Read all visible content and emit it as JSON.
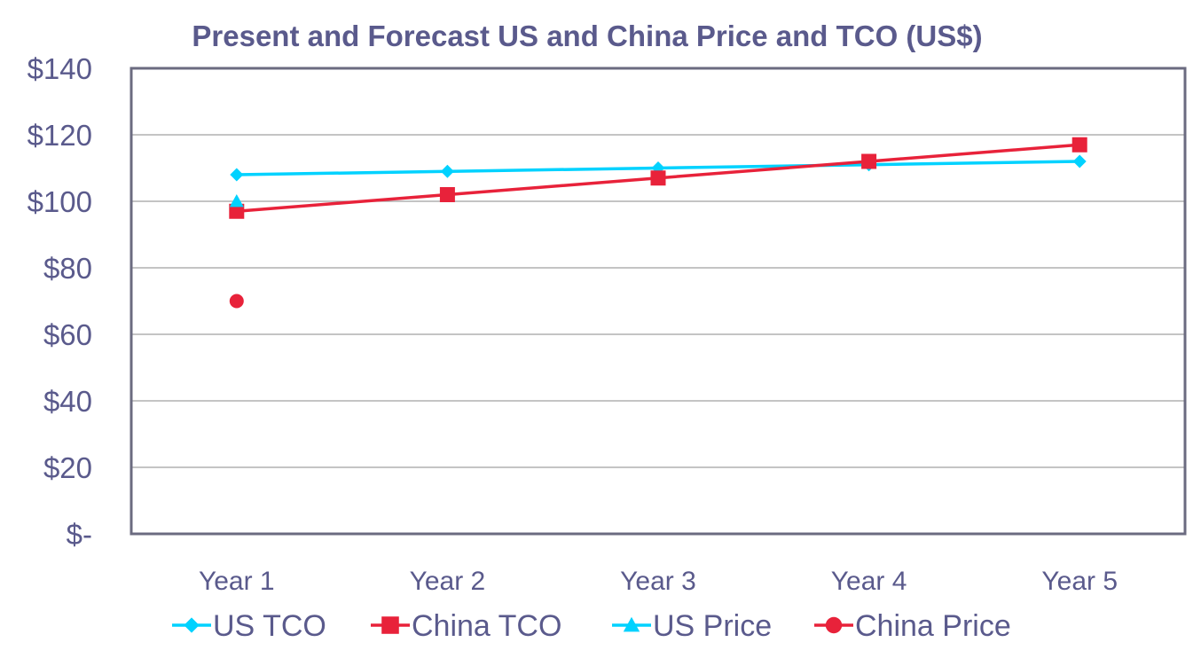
{
  "chart_data": {
    "type": "line",
    "title": "Present and Forecast US and China Price and TCO (US$)",
    "categories": [
      "Year 1",
      "Year 2",
      "Year 3",
      "Year 4",
      "Year 5"
    ],
    "ylim": [
      0,
      140
    ],
    "y_ticks": [
      0,
      20,
      40,
      60,
      80,
      100,
      120,
      140
    ],
    "y_tick_labels": [
      "$-",
      "$20",
      "$40",
      "$60",
      "$80",
      "$100",
      "$120",
      "$140"
    ],
    "grid": true,
    "legend_position": "bottom",
    "series": [
      {
        "name": "US TCO",
        "color": "#00d2ff",
        "marker": "diamond",
        "values": [
          108,
          109,
          110,
          111,
          112
        ]
      },
      {
        "name": "China TCO",
        "color": "#e8223a",
        "marker": "square",
        "values": [
          97,
          102,
          107,
          112,
          117
        ]
      },
      {
        "name": "US Price",
        "color": "#00d2ff",
        "marker": "triangle",
        "values": [
          100,
          null,
          null,
          null,
          null
        ]
      },
      {
        "name": "China Price",
        "color": "#e8223a",
        "marker": "circle",
        "values": [
          70,
          null,
          null,
          null,
          null
        ]
      }
    ]
  }
}
